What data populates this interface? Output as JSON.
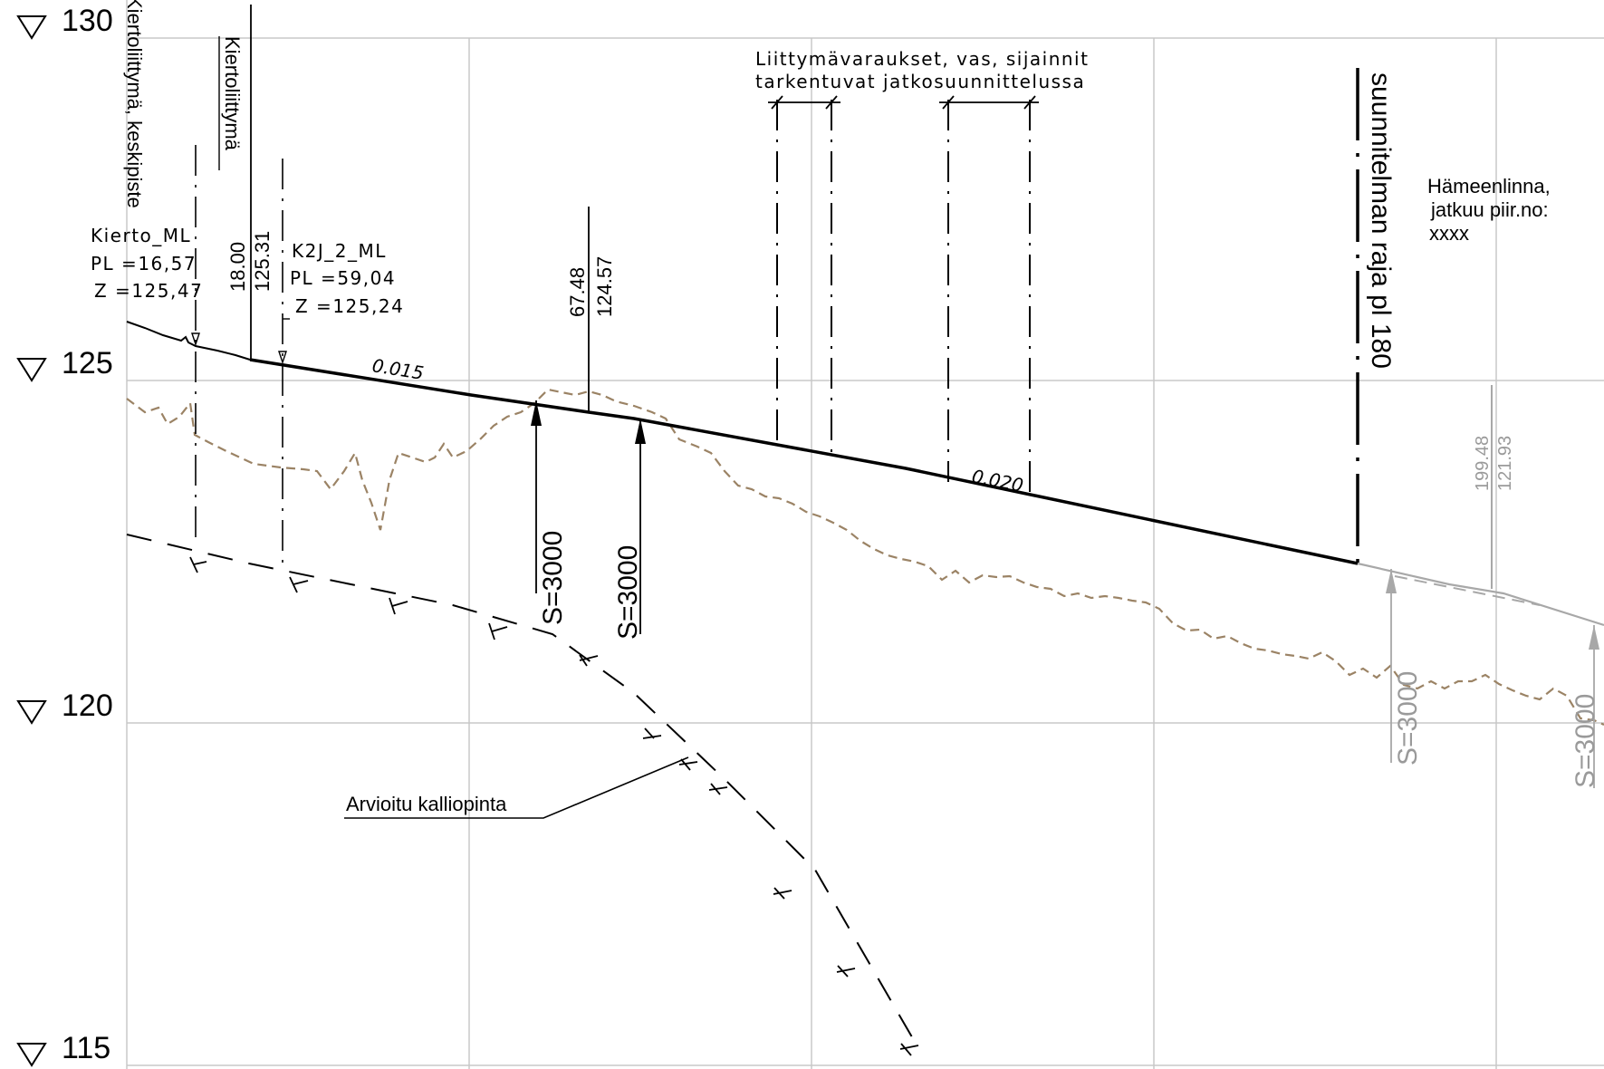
{
  "elevations": [
    {
      "label": "130"
    },
    {
      "label": "125"
    },
    {
      "label": "120"
    },
    {
      "label": "115"
    }
  ],
  "colors": {
    "grid": "#c8c8c8",
    "ground": "#9b8365",
    "design": "#000000",
    "continuation": "#a8a8a8"
  },
  "labels": {
    "kierto_center": "Kiertoliittymä, keskipiste",
    "kierto": "Kiertoliittymä",
    "kierto_ml_name": "Kierto_ML",
    "kierto_ml_pl": "PL =16,57",
    "kierto_ml_z": "Z =125,47",
    "k2j_name": "K2J_2_ML",
    "k2j_pl": "PL =59,04",
    "k2j_z": "Z =125,24",
    "pt1_station": "18.00",
    "pt1_elev": "125.31",
    "pt2_station": "67.48",
    "pt2_elev": "124.57",
    "slope1": "0.015",
    "slope2": "0.020",
    "curve1": "S=3000",
    "curve2": "S=3000",
    "reservations_line1": "Liittymävaraukset, vas, sijainnit",
    "reservations_line2": "tarkentuvat jatkosuunnittelussa",
    "plan_limit": "suunnitelman raja pl 180",
    "continues_line1": "Hämeenlinna,",
    "continues_line2": "jatkuu piir.no:",
    "continues_line3": "xxxx",
    "grey_station": "199.48",
    "grey_elev": "121.93",
    "grey_curve1": "S=3000",
    "grey_curve2": "S=3000",
    "bedrock": "Arvioitu kalliopinta"
  }
}
